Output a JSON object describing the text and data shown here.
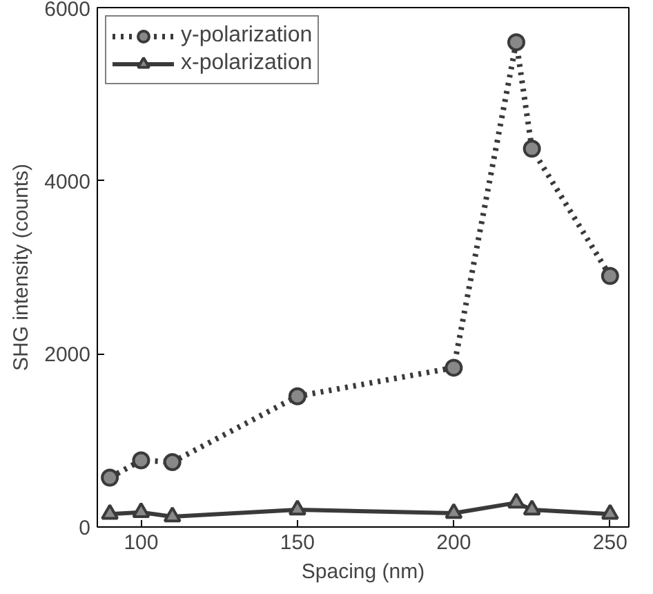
{
  "chart_data": {
    "type": "line",
    "xlabel": "Spacing (nm)",
    "ylabel": "SHG intensity (counts)",
    "x": [
      90,
      100,
      110,
      150,
      200,
      220,
      225,
      250
    ],
    "xlim": [
      86,
      256
    ],
    "xticks": [
      100,
      150,
      200,
      250
    ],
    "ylim": [
      0,
      6000
    ],
    "yticks": [
      0,
      2000,
      4000,
      6000
    ],
    "legend": "top left",
    "grid": false,
    "series": [
      {
        "name": "y-polarization",
        "color": "#3a3a3a",
        "marker": "circle",
        "line_style": "dotted",
        "values": [
          570,
          770,
          750,
          1510,
          1840,
          5600,
          4370,
          2900
        ]
      },
      {
        "name": "x-polarization",
        "color": "#3a3a3a",
        "marker": "triangle",
        "line_style": "solid",
        "values": [
          150,
          170,
          120,
          200,
          160,
          280,
          200,
          150
        ]
      }
    ]
  }
}
